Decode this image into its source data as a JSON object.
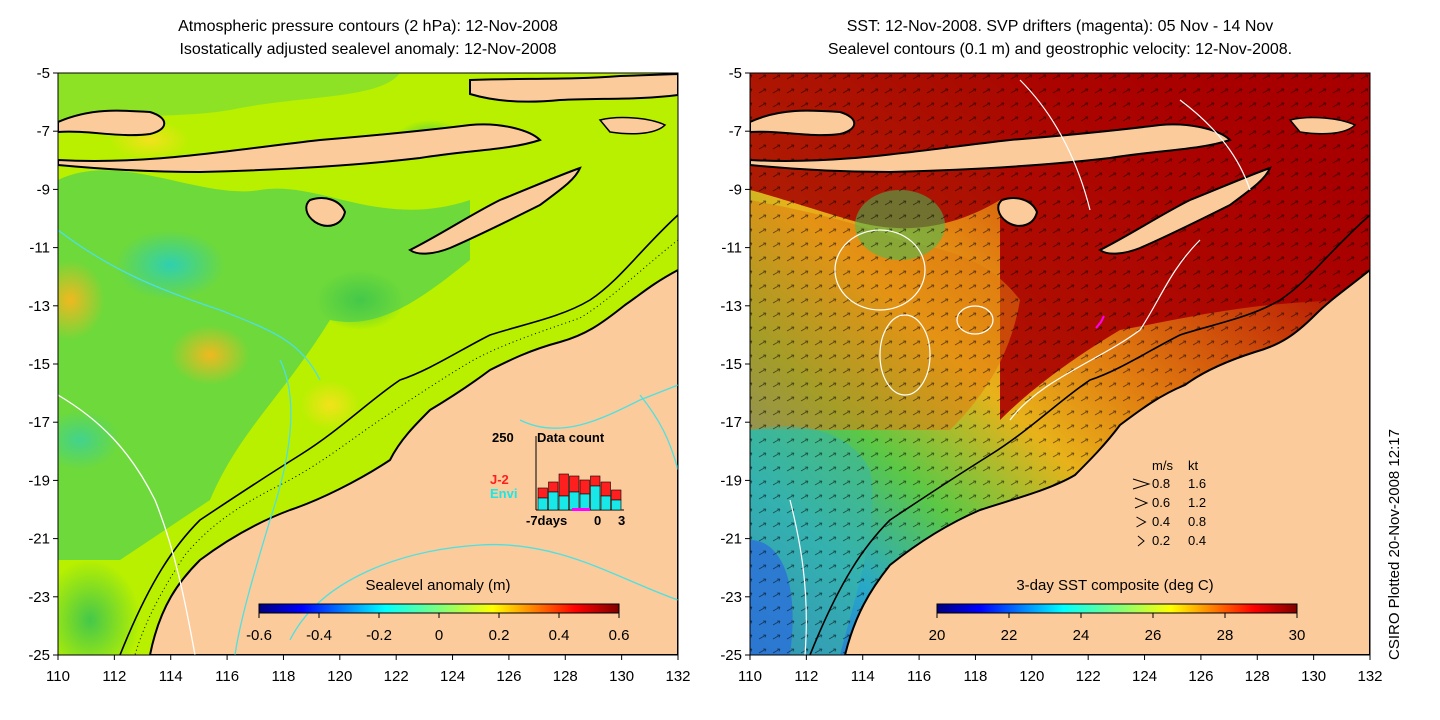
{
  "left_panel": {
    "title_line1": "Atmospheric pressure contours (2 hPa): 12-Nov-2008",
    "title_line2": "Isostatically adjusted sealevel anomaly: 12-Nov-2008",
    "colorbar_label": "Sealevel anomaly (m)",
    "colorbar_ticks": [
      "-0.6",
      "-0.4",
      "-0.2",
      "0",
      "0.2",
      "0.4",
      "0.6"
    ],
    "colors": {
      "land": "#fbcb9c",
      "base_field": "#b8f000",
      "green_field": "#55d24d",
      "cyan_low": "#35c9a0",
      "yellow_high": "#e8e81a",
      "coast": "#000000"
    },
    "data_count_inset": {
      "title": "Data count",
      "ymax_label": "250",
      "x_labels": [
        "-7days",
        "0",
        "3"
      ],
      "series_labels": [
        "J-2",
        "Envi"
      ],
      "series_colors": [
        "#ff1f1f",
        "#18e8e8"
      ]
    }
  },
  "right_panel": {
    "title_line1": "SST: 12-Nov-2008. SVP drifters (magenta): 05 Nov - 14 Nov",
    "title_line2": "Sealevel contours (0.1 m) and geostrophic velocity: 12-Nov-2008.",
    "colorbar_label": "3-day SST composite (deg C)",
    "colorbar_ticks": [
      "20",
      "22",
      "24",
      "26",
      "28",
      "30"
    ],
    "colors": {
      "land": "#fbcb9c",
      "warm": "#a80000",
      "orange": "#e07a10",
      "green": "#3fbf55",
      "blue": "#2a70d8",
      "drifter": "#ff00ff"
    },
    "velocity_legend": {
      "header": [
        "m/s",
        "kt"
      ],
      "rows": [
        [
          "0.8",
          "1.6"
        ],
        [
          "0.6",
          "1.2"
        ],
        [
          "0.4",
          "0.8"
        ],
        [
          "0.2",
          "0.4"
        ]
      ]
    }
  },
  "axes": {
    "y_ticks": [
      "-5",
      "-7",
      "-9",
      "-11",
      "-13",
      "-15",
      "-17",
      "-19",
      "-21",
      "-23",
      "-25"
    ],
    "x_ticks": [
      "110",
      "112",
      "114",
      "116",
      "118",
      "120",
      "122",
      "124",
      "126",
      "128",
      "130",
      "132"
    ]
  },
  "credit": "CSIRO Plotted 20-Nov-2008 12:17"
}
